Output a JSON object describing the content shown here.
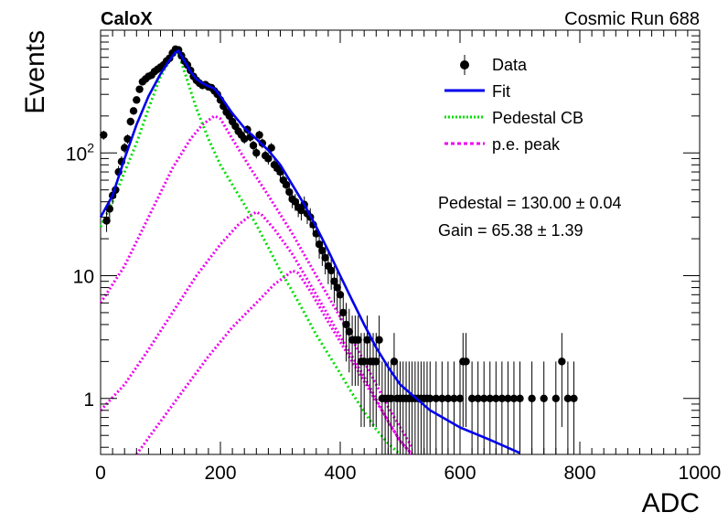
{
  "header": {
    "experiment": "CaloX",
    "run_label": "Cosmic Run 688"
  },
  "legend": {
    "data": "Data",
    "fit": "Fit",
    "pedestal": "Pedestal CB",
    "pe_peak": "p.e. peak"
  },
  "fit_results": {
    "pedestal_text": "Pedestal = 130.00 ± 0.04",
    "gain_text": "Gain = 65.38 ± 1.39"
  },
  "colors": {
    "data": "#000000",
    "fit": "#0000ee",
    "pedestal": "#00dd00",
    "pe_peak": "#ee00ee"
  },
  "chart_data": {
    "type": "scatter",
    "xlabel": "ADC",
    "ylabel": "Events",
    "xlim": [
      0,
      1000
    ],
    "ylim": [
      0.35,
      1000
    ],
    "yscale": "log",
    "x_ticks": [
      0,
      200,
      400,
      600,
      800,
      1000
    ],
    "x_tick_labels": [
      "0",
      "200",
      "400",
      "600",
      "800",
      "1000"
    ],
    "y_ticks": [
      1,
      10,
      100
    ],
    "y_tick_labels": [
      "1",
      "10",
      "10^2"
    ],
    "grid": false,
    "legend_position": "top-right",
    "series": [
      {
        "name": "Data",
        "style": "points-with-errors",
        "points": [
          [
            5,
            140
          ],
          [
            10,
            28
          ],
          [
            15,
            35
          ],
          [
            20,
            45
          ],
          [
            25,
            50
          ],
          [
            30,
            70
          ],
          [
            35,
            85
          ],
          [
            40,
            110
          ],
          [
            45,
            130
          ],
          [
            50,
            180
          ],
          [
            55,
            220
          ],
          [
            60,
            270
          ],
          [
            65,
            330
          ],
          [
            70,
            380
          ],
          [
            75,
            400
          ],
          [
            80,
            420
          ],
          [
            85,
            430
          ],
          [
            90,
            460
          ],
          [
            95,
            480
          ],
          [
            100,
            500
          ],
          [
            105,
            520
          ],
          [
            110,
            560
          ],
          [
            115,
            590
          ],
          [
            120,
            650
          ],
          [
            125,
            700
          ],
          [
            130,
            690
          ],
          [
            135,
            620
          ],
          [
            140,
            560
          ],
          [
            145,
            520
          ],
          [
            150,
            470
          ],
          [
            155,
            420
          ],
          [
            160,
            390
          ],
          [
            165,
            370
          ],
          [
            170,
            355
          ],
          [
            175,
            360
          ],
          [
            180,
            345
          ],
          [
            185,
            340
          ],
          [
            190,
            320
          ],
          [
            195,
            300
          ],
          [
            200,
            270
          ],
          [
            205,
            240
          ],
          [
            210,
            215
          ],
          [
            215,
            200
          ],
          [
            220,
            180
          ],
          [
            225,
            165
          ],
          [
            230,
            150
          ],
          [
            235,
            140
          ],
          [
            240,
            130
          ],
          [
            245,
            155
          ],
          [
            250,
            135
          ],
          [
            255,
            115
          ],
          [
            260,
            100
          ],
          [
            265,
            140
          ],
          [
            270,
            120
          ],
          [
            275,
            95
          ],
          [
            280,
            90
          ],
          [
            285,
            110
          ],
          [
            290,
            80
          ],
          [
            295,
            75
          ],
          [
            300,
            70
          ],
          [
            305,
            60
          ],
          [
            310,
            55
          ],
          [
            315,
            48
          ],
          [
            320,
            42
          ],
          [
            325,
            40
          ],
          [
            330,
            36
          ],
          [
            335,
            34
          ],
          [
            340,
            38
          ],
          [
            345,
            32
          ],
          [
            350,
            30
          ],
          [
            355,
            26
          ],
          [
            360,
            22
          ],
          [
            365,
            18
          ],
          [
            370,
            16
          ],
          [
            375,
            14
          ],
          [
            380,
            12
          ],
          [
            385,
            11
          ],
          [
            390,
            9
          ],
          [
            395,
            8
          ],
          [
            400,
            7
          ],
          [
            405,
            5
          ],
          [
            410,
            4
          ],
          [
            415,
            3.5
          ],
          [
            420,
            3
          ],
          [
            425,
            3
          ],
          [
            430,
            3
          ],
          [
            435,
            2
          ],
          [
            440,
            2
          ],
          [
            445,
            3
          ],
          [
            450,
            2
          ],
          [
            455,
            2
          ],
          [
            460,
            2
          ],
          [
            465,
            3
          ],
          [
            470,
            1
          ],
          [
            475,
            1
          ],
          [
            480,
            1
          ],
          [
            485,
            1
          ],
          [
            490,
            2
          ],
          [
            495,
            1
          ],
          [
            500,
            1
          ],
          [
            505,
            1
          ],
          [
            510,
            1
          ],
          [
            515,
            1
          ],
          [
            520,
            1
          ],
          [
            525,
            1
          ],
          [
            530,
            1
          ],
          [
            535,
            1
          ],
          [
            540,
            1
          ],
          [
            545,
            1
          ],
          [
            550,
            1
          ],
          [
            560,
            1
          ],
          [
            570,
            1
          ],
          [
            580,
            1
          ],
          [
            590,
            1
          ],
          [
            600,
            1
          ],
          [
            605,
            2
          ],
          [
            610,
            2
          ],
          [
            620,
            1
          ],
          [
            630,
            1
          ],
          [
            640,
            1
          ],
          [
            650,
            1
          ],
          [
            660,
            1
          ],
          [
            670,
            1
          ],
          [
            680,
            1
          ],
          [
            690,
            1
          ],
          [
            700,
            1
          ],
          [
            720,
            1
          ],
          [
            740,
            1
          ],
          [
            760,
            1
          ],
          [
            770,
            2
          ],
          [
            780,
            1
          ],
          [
            790,
            1
          ]
        ]
      },
      {
        "name": "Fit",
        "style": "line",
        "points": [
          [
            0,
            30
          ],
          [
            20,
            45
          ],
          [
            40,
            90
          ],
          [
            60,
            170
          ],
          [
            80,
            290
          ],
          [
            100,
            440
          ],
          [
            115,
            570
          ],
          [
            125,
            660
          ],
          [
            130,
            680
          ],
          [
            140,
            560
          ],
          [
            150,
            460
          ],
          [
            160,
            400
          ],
          [
            170,
            370
          ],
          [
            180,
            350
          ],
          [
            190,
            335
          ],
          [
            200,
            290
          ],
          [
            220,
            210
          ],
          [
            240,
            160
          ],
          [
            260,
            130
          ],
          [
            280,
            105
          ],
          [
            300,
            80
          ],
          [
            320,
            55
          ],
          [
            340,
            38
          ],
          [
            360,
            25
          ],
          [
            380,
            16
          ],
          [
            400,
            10
          ],
          [
            420,
            6.3
          ],
          [
            440,
            4
          ],
          [
            460,
            2.6
          ],
          [
            480,
            1.8
          ],
          [
            500,
            1.3
          ],
          [
            550,
            0.8
          ],
          [
            600,
            0.58
          ],
          [
            650,
            0.46
          ],
          [
            700,
            0.36
          ]
        ]
      },
      {
        "name": "Pedestal CB",
        "style": "dotted",
        "points": [
          [
            0,
            25
          ],
          [
            20,
            40
          ],
          [
            40,
            70
          ],
          [
            60,
            120
          ],
          [
            80,
            230
          ],
          [
            100,
            420
          ],
          [
            115,
            560
          ],
          [
            125,
            640
          ],
          [
            130,
            650
          ],
          [
            140,
            460
          ],
          [
            160,
            230
          ],
          [
            180,
            130
          ],
          [
            200,
            80
          ],
          [
            220,
            55
          ],
          [
            240,
            38
          ],
          [
            260,
            26
          ],
          [
            280,
            17
          ],
          [
            300,
            11
          ],
          [
            320,
            7.5
          ],
          [
            340,
            5
          ],
          [
            360,
            3.3
          ],
          [
            380,
            2.3
          ],
          [
            400,
            1.6
          ],
          [
            420,
            1.1
          ],
          [
            440,
            0.78
          ],
          [
            460,
            0.56
          ],
          [
            480,
            0.43
          ],
          [
            500,
            0.35
          ]
        ]
      },
      {
        "name": "p.e. peak",
        "style": "dotted",
        "points": [
          [
            0,
            6
          ],
          [
            40,
            12
          ],
          [
            80,
            30
          ],
          [
            120,
            75
          ],
          [
            150,
            130
          ],
          [
            170,
            170
          ],
          [
            190,
            200
          ],
          [
            200,
            190
          ],
          [
            220,
            130
          ],
          [
            250,
            75
          ],
          [
            280,
            45
          ],
          [
            320,
            22
          ],
          [
            360,
            10
          ],
          [
            400,
            4.6
          ],
          [
            440,
            2
          ],
          [
            480,
            0.85
          ],
          [
            520,
            0.4
          ]
        ]
      },
      {
        "name": "p.e. peak",
        "style": "dotted",
        "points": [
          [
            0,
            0.8
          ],
          [
            40,
            1.3
          ],
          [
            80,
            2.5
          ],
          [
            120,
            5
          ],
          [
            160,
            10
          ],
          [
            200,
            18
          ],
          [
            230,
            26
          ],
          [
            250,
            31
          ],
          [
            260,
            33
          ],
          [
            270,
            31
          ],
          [
            290,
            24
          ],
          [
            320,
            15
          ],
          [
            360,
            7
          ],
          [
            400,
            3.2
          ],
          [
            440,
            1.5
          ],
          [
            480,
            0.65
          ],
          [
            500,
            0.45
          ],
          [
            520,
            0.35
          ]
        ]
      },
      {
        "name": "p.e. peak",
        "style": "dotted",
        "points": [
          [
            60,
            0.35
          ],
          [
            100,
            0.65
          ],
          [
            140,
            1.2
          ],
          [
            180,
            2.2
          ],
          [
            220,
            3.8
          ],
          [
            260,
            6
          ],
          [
            290,
            8.5
          ],
          [
            310,
            10
          ],
          [
            320,
            11
          ],
          [
            330,
            10.5
          ],
          [
            350,
            7.5
          ],
          [
            380,
            4.2
          ],
          [
            420,
            2
          ],
          [
            460,
            0.95
          ],
          [
            500,
            0.45
          ],
          [
            520,
            0.35
          ]
        ]
      }
    ]
  }
}
